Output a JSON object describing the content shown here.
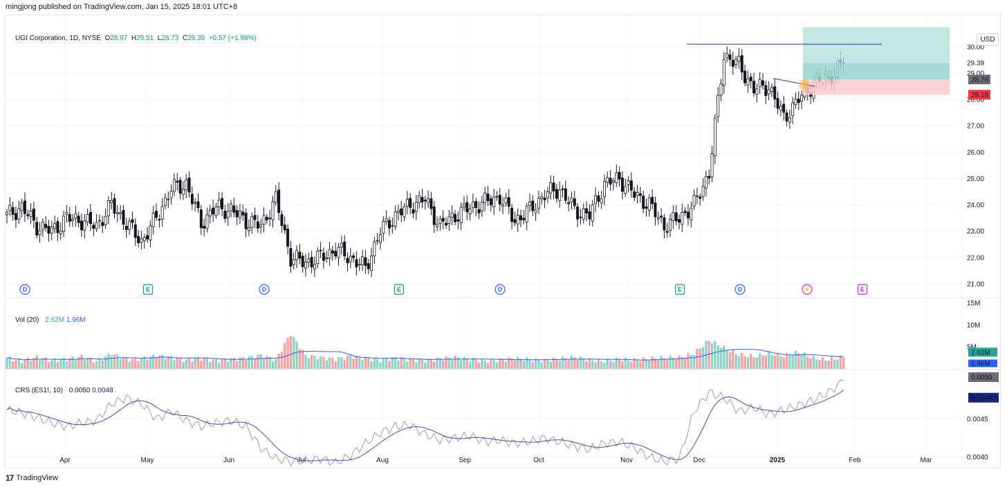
{
  "attribution": "mingjong published on TradingView.com, Jan 15, 2025 18:01 UTC+8",
  "symbol_title": "UGI Corporation, 1D, NYSE",
  "ohlc": {
    "o_label": "O",
    "o": "28.97",
    "h_label": "H",
    "h": "29.51",
    "l_label": "L",
    "l": "28.73",
    "c_label": "C",
    "c": "29.39",
    "change": "+0.57 (+1.98%)"
  },
  "currency": "USD",
  "footer_logo_text": "TradingView",
  "volume_legend": {
    "name": "Vol (20)",
    "v1": "2.62M",
    "v2": "1.96M"
  },
  "crs_legend": {
    "name": "CRS (ES1!, 10)",
    "v1": "0.0050",
    "v2": "0.0048"
  },
  "colors": {
    "up": "#26a69a",
    "down": "#ef5350",
    "vol_up": "#8fd3c9",
    "vol_down": "#f5a3a3",
    "vol_ma": "#2962ff",
    "crs_line": "#9e9e9e",
    "crs_ma": "#3a4fb0",
    "badge_price": "#6a6d78",
    "badge_stop": "#f23645",
    "target_zone": "#b2dfdb",
    "stop_zone": "#fccbcd",
    "dividend": "#2962ff",
    "earnings": "#089981",
    "lightning": "#c026d3"
  },
  "chart_data": [
    {
      "type": "candlestick",
      "title": "UGI Corporation, 1D, NYSE",
      "x_tick_labels": [
        "Apr",
        "May",
        "Jun",
        "Jul",
        "Aug",
        "Sep",
        "Oct",
        "Nov",
        "Dec",
        "2025",
        "Feb",
        "Mar"
      ],
      "y_tick_labels": [
        "30.00",
        "29.00",
        "28.00",
        "27.00",
        "26.00",
        "25.00",
        "24.00",
        "23.00",
        "22.00",
        "21.00"
      ],
      "ylim": [
        20.5,
        31.2
      ],
      "weekly_close": [
        23.6,
        23.9,
        23.2,
        23.0,
        23.5,
        23.4,
        23.2,
        24.0,
        23.3,
        22.6,
        23.5,
        24.6,
        24.8,
        23.3,
        23.9,
        23.8,
        23.4,
        23.2,
        24.2,
        22.0,
        21.8,
        22.0,
        22.3,
        22.0,
        21.6,
        23.0,
        23.6,
        24.0,
        24.2,
        23.2,
        23.6,
        23.9,
        24.1,
        24.3,
        23.4,
        23.8,
        24.4,
        24.6,
        23.8,
        23.6,
        24.8,
        25.0,
        24.4,
        24.0,
        23.2,
        23.5,
        24.0,
        25.2,
        29.7,
        29.3,
        28.4,
        28.5,
        27.3,
        28.0,
        28.6,
        28.8,
        29.39
      ],
      "price_labels": [
        {
          "text": "29.39"
        },
        {
          "text": "28.76"
        },
        {
          "text": "28.18"
        }
      ],
      "events": [
        {
          "letter": "D",
          "kind": "dividend"
        },
        {
          "letter": "E",
          "kind": "earnings"
        },
        {
          "letter": "D",
          "kind": "dividend"
        },
        {
          "letter": "E",
          "kind": "earnings"
        },
        {
          "letter": "D",
          "kind": "dividend"
        },
        {
          "letter": "E",
          "kind": "earnings"
        },
        {
          "letter": "D",
          "kind": "dividend"
        },
        {
          "letter": "⚡",
          "kind": "lightning"
        },
        {
          "letter": "E",
          "kind": "earnings-upcoming"
        }
      ],
      "target_zone": [
        28.76,
        30.75
      ],
      "stop_zone": [
        28.18,
        28.76
      ],
      "resistance_line": 30.1
    },
    {
      "type": "bar",
      "title": "Vol (20)",
      "y_tick_labels": [
        "15M",
        "10M",
        "5M"
      ],
      "ylim": [
        0,
        16
      ],
      "weekly_volume_millions": [
        2.4,
        1.8,
        2.6,
        1.9,
        2.2,
        2.8,
        1.7,
        3.5,
        2.1,
        2.3,
        3.0,
        2.6,
        2.0,
        2.4,
        1.9,
        2.2,
        2.5,
        3.1,
        2.0,
        8.0,
        3.0,
        2.6,
        2.2,
        2.9,
        2.4,
        2.0,
        2.5,
        2.1,
        1.9,
        2.3,
        2.6,
        2.2,
        1.8,
        2.0,
        2.4,
        2.1,
        1.9,
        2.3,
        2.6,
        2.0,
        1.8,
        2.2,
        2.0,
        2.3,
        2.5,
        2.6,
        3.5,
        6.5,
        4.8,
        3.2,
        2.8,
        3.5,
        2.9,
        3.8,
        2.4,
        2.1,
        2.62
      ],
      "ma_last": 1.96,
      "badges": [
        {
          "text": "2.62M"
        },
        {
          "text": "1.96M"
        }
      ]
    },
    {
      "type": "line",
      "title": "CRS (ES1!, 10)",
      "y_tick_labels": [
        "0.0045",
        "0.0040"
      ],
      "ylim": [
        0.00385,
        0.00515
      ],
      "weekly_crs": [
        0.00462,
        0.00458,
        0.00452,
        0.00445,
        0.0044,
        0.00445,
        0.00448,
        0.0047,
        0.00478,
        0.0047,
        0.0045,
        0.0046,
        0.00448,
        0.0044,
        0.00445,
        0.00448,
        0.0044,
        0.00412,
        0.00398,
        0.00394,
        0.00395,
        0.00398,
        0.00392,
        0.00402,
        0.00418,
        0.00432,
        0.0044,
        0.00442,
        0.0043,
        0.00422,
        0.00425,
        0.00428,
        0.0042,
        0.00422,
        0.00418,
        0.0042,
        0.00425,
        0.0042,
        0.00414,
        0.0041,
        0.00418,
        0.0042,
        0.00412,
        0.004,
        0.00394,
        0.00398,
        0.0046,
        0.00485,
        0.00478,
        0.0046,
        0.00465,
        0.00456,
        0.00462,
        0.00468,
        0.00475,
        0.00485,
        0.005
      ],
      "ma_last": 0.0048,
      "badges": [
        {
          "text": "0.0050"
        },
        {
          "text": "0.0048"
        }
      ]
    }
  ]
}
